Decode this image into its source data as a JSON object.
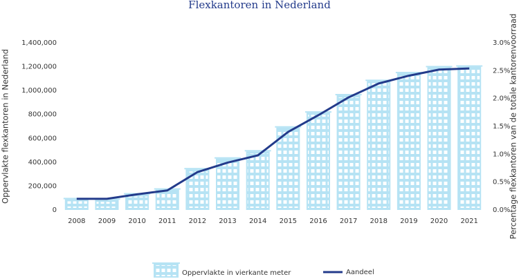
{
  "chart_data": {
    "type": "bar-line",
    "title": "Flexkantoren in Nederland",
    "y_label": "Oppervlakte flexkantoren in Nederland",
    "y2_label": "Percentage flexkantoren van de totale kantorenvoorraad",
    "categories": [
      "2008",
      "2009",
      "2010",
      "2011",
      "2012",
      "2013",
      "2014",
      "2015",
      "2016",
      "2017",
      "2018",
      "2019",
      "2020",
      "2021"
    ],
    "series": [
      {
        "name": "Oppervlakte in vierkante meter",
        "type": "bar",
        "color": "#b6e3f4",
        "values": [
          90000,
          85000,
          130000,
          170000,
          340000,
          430000,
          490000,
          690000,
          815000,
          960000,
          1080000,
          1145000,
          1195000,
          1200000
        ]
      },
      {
        "name": "Aandeel",
        "type": "line",
        "axis": "y2",
        "color": "#233b8b",
        "values": [
          0.2,
          0.2,
          0.28,
          0.35,
          0.68,
          0.85,
          0.98,
          1.4,
          1.7,
          2.02,
          2.27,
          2.41,
          2.52,
          2.54
        ]
      }
    ],
    "ylim": [
      0,
      1400000
    ],
    "yticks": [
      0,
      {
        "value": 200000,
        "label": "200,000"
      },
      {
        "value": 400000,
        "label": "400,000"
      },
      {
        "value": 600000,
        "label": "600,000"
      },
      {
        "value": 800000,
        "label": "800,000"
      },
      {
        "value": 1000000,
        "label": "1,000,000"
      },
      {
        "value": 1200000,
        "label": "1,200,000"
      },
      {
        "value": 1400000,
        "label": "1,400,000"
      }
    ],
    "y2lim": [
      0,
      3
    ],
    "y2ticks": [
      {
        "value": 0,
        "label": "0.0%"
      },
      {
        "value": 0.5,
        "label": "0.5%"
      },
      {
        "value": 1,
        "label": "1.0%"
      },
      {
        "value": 1.5,
        "label": "1.5%"
      },
      {
        "value": 2,
        "label": "2.0%"
      },
      {
        "value": 2.5,
        "label": "2.5%"
      },
      {
        "value": 3,
        "label": "3.0%"
      }
    ],
    "legend": "bottom"
  }
}
